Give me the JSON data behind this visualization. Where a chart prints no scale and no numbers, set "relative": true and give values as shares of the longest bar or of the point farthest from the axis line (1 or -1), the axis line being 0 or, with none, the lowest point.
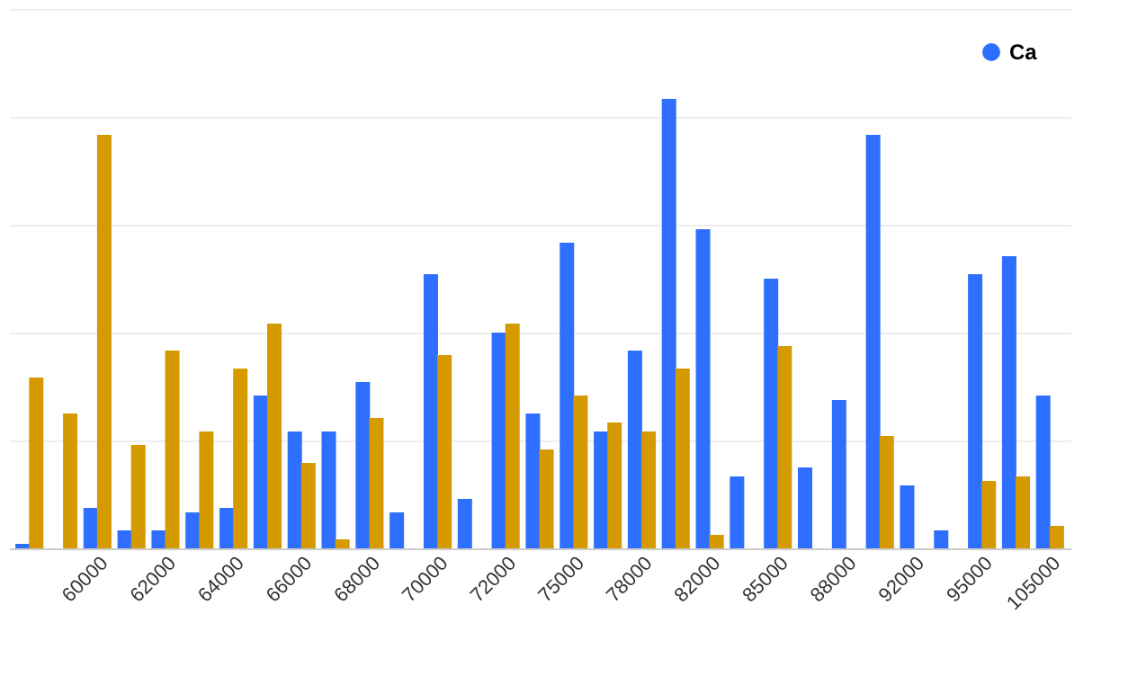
{
  "chart_data": {
    "type": "bar",
    "relative": true,
    "grid": "y",
    "legend": "top right",
    "categories": [
      null,
      null,
      "60000",
      null,
      "62000",
      null,
      "64000",
      null,
      "66000",
      null,
      "68000",
      null,
      "70000",
      null,
      "72000",
      null,
      "75000",
      null,
      "78000",
      null,
      "82000",
      null,
      "85000",
      null,
      "88000",
      null,
      "92000",
      null,
      "95000",
      null,
      "105000"
    ],
    "series": [
      {
        "name": "Ca",
        "color": "#2f6fff",
        "values": [
          0.01,
          null,
          0.09,
          0.04,
          0.04,
          0.08,
          0.09,
          0.34,
          0.26,
          0.26,
          0.37,
          0.08,
          0.61,
          0.11,
          0.48,
          0.3,
          0.68,
          0.26,
          0.44,
          1,
          0.71,
          0.16,
          0.6,
          0.18,
          0.33,
          0.92,
          0.14,
          0.04,
          0.61,
          0.65,
          0.34
        ]
      },
      {
        "color": "#d49a00",
        "values": [
          0.38,
          0.3,
          0.92,
          0.23,
          0.44,
          0.26,
          0.4,
          0.5,
          0.19,
          0.02,
          0.29,
          null,
          0.43,
          null,
          0.5,
          0.22,
          0.34,
          0.28,
          0.26,
          0.4,
          0.03,
          null,
          0.45,
          null,
          null,
          0.25,
          null,
          null,
          0.15,
          0.16,
          0.05
        ]
      }
    ]
  }
}
